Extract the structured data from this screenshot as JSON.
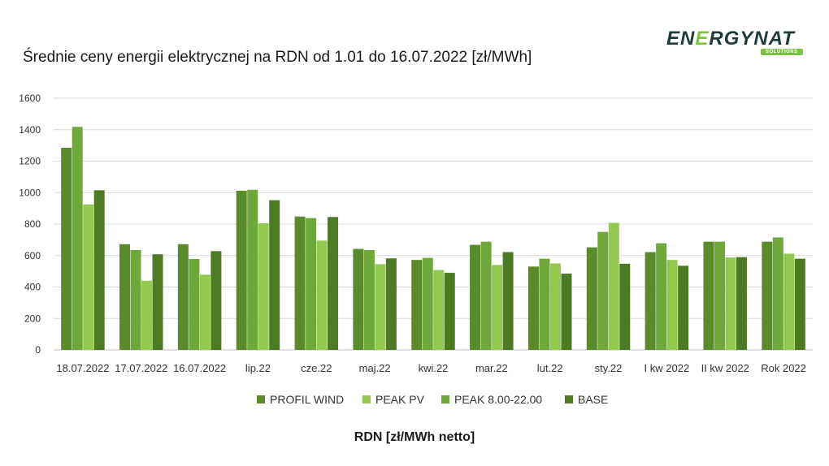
{
  "title": "Średnie ceny energii elektrycznej na RDN od 1.01 do 16.07.2022 [zł/MWh]",
  "logo": {
    "text_part1": "EN",
    "text_part2": "E",
    "text_part3": "RGYNAT",
    "badge": "SOLUTIONS"
  },
  "footer_label": "RDN [zł/MWh netto]",
  "colors": {
    "PROFIL WIND": "#5a8a2a",
    "PEAK PV": "#93c94f",
    "PEAK 8.00-22.00": "#6ea83a",
    "BASE": "#4e7a24",
    "grid": "#d9d9d9",
    "axis": "#bfbfbf"
  },
  "chart_data": {
    "type": "bar",
    "title": "Średnie ceny energii elektrycznej na RDN od 1.01 do 16.07.2022 [zł/MWh]",
    "xlabel": "RDN [zł/MWh netto]",
    "ylabel": "",
    "ylim": [
      0,
      1600
    ],
    "yticks": [
      0,
      200,
      400,
      600,
      800,
      1000,
      1200,
      1400,
      1600
    ],
    "grid": true,
    "legend_position": "bottom",
    "categories": [
      "18.07.2022",
      "17.07.2022",
      "16.07.2022",
      "lip.22",
      "cze.22",
      "maj.22",
      "kwi.22",
      "mar.22",
      "lut.22",
      "sty.22",
      "I kw 2022",
      "II kw 2022",
      "Rok 2022"
    ],
    "series": [
      {
        "name": "PROFIL WIND",
        "values": [
          1285,
          672,
          672,
          1012,
          848,
          642,
          572,
          668,
          530,
          652,
          622,
          688,
          688
        ]
      },
      {
        "name": "PEAK 8.00-22.00",
        "values": [
          1418,
          635,
          578,
          1018,
          838,
          635,
          585,
          688,
          580,
          750,
          678,
          688,
          715
        ]
      },
      {
        "name": "PEAK PV",
        "values": [
          925,
          440,
          478,
          805,
          695,
          545,
          508,
          540,
          550,
          808,
          572,
          588,
          612
        ]
      },
      {
        "name": "BASE",
        "values": [
          1015,
          608,
          628,
          952,
          845,
          582,
          490,
          622,
          485,
          548,
          535,
          590,
          580
        ]
      }
    ],
    "legend": [
      "PROFIL WIND",
      "PEAK PV",
      "PEAK 8.00-22.00",
      "BASE"
    ]
  }
}
